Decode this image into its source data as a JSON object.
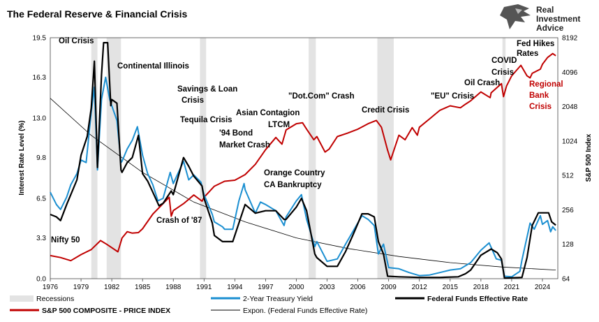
{
  "title": "The Federal Reserve & Financial Crisis",
  "logo": {
    "lines": [
      "Real",
      "Investment",
      "Advice"
    ]
  },
  "chart_data": {
    "type": "line",
    "left_axis": {
      "label": "Interest Rate Level (%)",
      "min": 0,
      "max": 19.5,
      "ticks": [
        "0.0",
        "3.3",
        "6.5",
        "9.8",
        "13.0",
        "16.3",
        "19.5"
      ]
    },
    "right_axis": {
      "label": "S&P 500 Index",
      "scale": "log2",
      "min": 64,
      "max": 8192,
      "ticks": [
        "64",
        "128",
        "256",
        "512",
        "1024",
        "2048",
        "4096",
        "8192"
      ]
    },
    "x_axis": {
      "min": 1976,
      "max": 2025.5,
      "ticks": [
        "1976",
        "1979",
        "1982",
        "1985",
        "1988",
        "1991",
        "1994",
        "1997",
        "2000",
        "2003",
        "2006",
        "2009",
        "2012",
        "2015",
        "2018",
        "2021",
        "2024"
      ]
    },
    "recessions": [
      [
        1980.0,
        1980.6
      ],
      [
        1981.5,
        1982.9
      ],
      [
        1990.6,
        1991.2
      ],
      [
        2001.2,
        2001.9
      ],
      [
        2007.9,
        2009.5
      ],
      [
        2020.1,
        2020.4
      ]
    ],
    "series": [
      {
        "name": "S&P 500 COMPOSITE - PRICE INDEX",
        "axis": "right",
        "color": "#c00000",
        "points": [
          [
            1976,
            102
          ],
          [
            1977,
            98
          ],
          [
            1978,
            92
          ],
          [
            1979,
            104
          ],
          [
            1980,
            115
          ],
          [
            1980.9,
            138
          ],
          [
            1981.5,
            128
          ],
          [
            1982.6,
            110
          ],
          [
            1983,
            145
          ],
          [
            1983.5,
            165
          ],
          [
            1984,
            160
          ],
          [
            1984.6,
            162
          ],
          [
            1985,
            175
          ],
          [
            1986,
            235
          ],
          [
            1987.6,
            330
          ],
          [
            1987.8,
            225
          ],
          [
            1988,
            252
          ],
          [
            1989,
            290
          ],
          [
            1990,
            345
          ],
          [
            1990.8,
            305
          ],
          [
            1991,
            330
          ],
          [
            1992,
            412
          ],
          [
            1993,
            455
          ],
          [
            1994,
            465
          ],
          [
            1995,
            520
          ],
          [
            1996,
            640
          ],
          [
            1997,
            860
          ],
          [
            1998,
            1100
          ],
          [
            1998.6,
            960
          ],
          [
            1999,
            1280
          ],
          [
            2000,
            1450
          ],
          [
            2000.6,
            1480
          ],
          [
            2001,
            1300
          ],
          [
            2001.7,
            1050
          ],
          [
            2002,
            1120
          ],
          [
            2002.8,
            820
          ],
          [
            2003.2,
            870
          ],
          [
            2004,
            1120
          ],
          [
            2005,
            1200
          ],
          [
            2006,
            1300
          ],
          [
            2007,
            1450
          ],
          [
            2007.8,
            1550
          ],
          [
            2008.3,
            1350
          ],
          [
            2008.9,
            850
          ],
          [
            2009.2,
            700
          ],
          [
            2010,
            1150
          ],
          [
            2010.6,
            1050
          ],
          [
            2011.3,
            1340
          ],
          [
            2011.8,
            1150
          ],
          [
            2012,
            1350
          ],
          [
            2013,
            1600
          ],
          [
            2014,
            1900
          ],
          [
            2015,
            2080
          ],
          [
            2016,
            2000
          ],
          [
            2016.5,
            2150
          ],
          [
            2017,
            2300
          ],
          [
            2018,
            2750
          ],
          [
            2018.9,
            2450
          ],
          [
            2019,
            2700
          ],
          [
            2020,
            3250
          ],
          [
            2020.2,
            2500
          ],
          [
            2020.5,
            3100
          ],
          [
            2021,
            3800
          ],
          [
            2021.9,
            4700
          ],
          [
            2022.5,
            3800
          ],
          [
            2022.8,
            3650
          ],
          [
            2023,
            4000
          ],
          [
            2023.8,
            4350
          ],
          [
            2024,
            4800
          ],
          [
            2024.5,
            5500
          ],
          [
            2025,
            5950
          ],
          [
            2025.3,
            5700
          ]
        ]
      },
      {
        "name": "2-Year Treasury Yield",
        "axis": "left",
        "color": "#1b8fd1",
        "points": [
          [
            1976,
            7.0
          ],
          [
            1976.6,
            6.0
          ],
          [
            1977,
            5.6
          ],
          [
            1977.6,
            6.6
          ],
          [
            1978,
            7.6
          ],
          [
            1978.6,
            8.5
          ],
          [
            1979,
            9.6
          ],
          [
            1979.5,
            9.4
          ],
          [
            1980,
            13.5
          ],
          [
            1980.3,
            15.5
          ],
          [
            1980.6,
            8.8
          ],
          [
            1981,
            14.5
          ],
          [
            1981.4,
            16.3
          ],
          [
            1981.8,
            14.5
          ],
          [
            1982,
            14.0
          ],
          [
            1982.5,
            12.8
          ],
          [
            1982.9,
            9.4
          ],
          [
            1983,
            9.5
          ],
          [
            1983.5,
            10.5
          ],
          [
            1984,
            11.2
          ],
          [
            1984.5,
            12.3
          ],
          [
            1985,
            10.0
          ],
          [
            1985.5,
            8.5
          ],
          [
            1986,
            7.6
          ],
          [
            1986.5,
            6.3
          ],
          [
            1987,
            6.5
          ],
          [
            1987.7,
            8.6
          ],
          [
            1988,
            7.7
          ],
          [
            1989,
            9.5
          ],
          [
            1989.5,
            8.0
          ],
          [
            1990,
            8.4
          ],
          [
            1990.7,
            7.8
          ],
          [
            1991,
            6.8
          ],
          [
            1991.8,
            5.2
          ],
          [
            1992,
            4.6
          ],
          [
            1992.8,
            4.2
          ],
          [
            1993,
            4.0
          ],
          [
            1993.8,
            4.0
          ],
          [
            1994.4,
            6.3
          ],
          [
            1994.9,
            7.7
          ],
          [
            1995,
            7.2
          ],
          [
            1996,
            5.3
          ],
          [
            1996.5,
            6.2
          ],
          [
            1997,
            6.0
          ],
          [
            1998,
            5.5
          ],
          [
            1998.8,
            4.3
          ],
          [
            1999,
            5.0
          ],
          [
            2000,
            6.3
          ],
          [
            2000.5,
            6.8
          ],
          [
            2001,
            4.8
          ],
          [
            2001.8,
            2.6
          ],
          [
            2002,
            3.0
          ],
          [
            2003,
            1.4
          ],
          [
            2004,
            1.6
          ],
          [
            2004.8,
            2.8
          ],
          [
            2005.5,
            3.8
          ],
          [
            2006.4,
            5.1
          ],
          [
            2007,
            4.8
          ],
          [
            2007.6,
            4.3
          ],
          [
            2008,
            2.0
          ],
          [
            2008.5,
            2.8
          ],
          [
            2009,
            0.9
          ],
          [
            2010,
            0.8
          ],
          [
            2011,
            0.5
          ],
          [
            2012,
            0.25
          ],
          [
            2013,
            0.3
          ],
          [
            2014,
            0.5
          ],
          [
            2015,
            0.7
          ],
          [
            2016,
            0.8
          ],
          [
            2017,
            1.3
          ],
          [
            2018,
            2.3
          ],
          [
            2018.8,
            2.9
          ],
          [
            2019.5,
            1.6
          ],
          [
            2020,
            1.5
          ],
          [
            2020.3,
            0.2
          ],
          [
            2021,
            0.15
          ],
          [
            2021.8,
            0.6
          ],
          [
            2022,
            1.5
          ],
          [
            2022.8,
            4.5
          ],
          [
            2023.2,
            4.0
          ],
          [
            2023.8,
            5.1
          ],
          [
            2024,
            4.4
          ],
          [
            2024.5,
            4.7
          ],
          [
            2024.8,
            3.8
          ],
          [
            2025,
            4.2
          ],
          [
            2025.3,
            3.9
          ]
        ]
      },
      {
        "name": "Federal Funds Effective Rate",
        "axis": "left",
        "color": "#000000",
        "points": [
          [
            1976,
            5.2
          ],
          [
            1976.6,
            5.0
          ],
          [
            1977,
            4.7
          ],
          [
            1977.6,
            6.0
          ],
          [
            1978,
            6.8
          ],
          [
            1978.6,
            8.0
          ],
          [
            1979,
            10.0
          ],
          [
            1979.6,
            11.5
          ],
          [
            1980,
            13.8
          ],
          [
            1980.3,
            17.6
          ],
          [
            1980.6,
            9.0
          ],
          [
            1981,
            16.5
          ],
          [
            1981.2,
            19.1
          ],
          [
            1981.6,
            19.1
          ],
          [
            1981.9,
            14.0
          ],
          [
            1982,
            14.5
          ],
          [
            1982.5,
            14.2
          ],
          [
            1982.9,
            8.8
          ],
          [
            1983,
            8.6
          ],
          [
            1983.5,
            9.4
          ],
          [
            1984,
            9.8
          ],
          [
            1984.6,
            11.6
          ],
          [
            1985,
            8.5
          ],
          [
            1985.5,
            7.9
          ],
          [
            1986,
            7.0
          ],
          [
            1986.6,
            5.9
          ],
          [
            1987,
            6.1
          ],
          [
            1987.8,
            7.1
          ],
          [
            1988,
            6.8
          ],
          [
            1989,
            9.8
          ],
          [
            1989.5,
            9.1
          ],
          [
            1990,
            8.3
          ],
          [
            1990.8,
            7.5
          ],
          [
            1991,
            6.5
          ],
          [
            1991.8,
            4.5
          ],
          [
            1992,
            3.5
          ],
          [
            1992.8,
            3.0
          ],
          [
            1993,
            3.0
          ],
          [
            1993.8,
            3.0
          ],
          [
            1994.4,
            4.5
          ],
          [
            1995,
            6.0
          ],
          [
            1996,
            5.3
          ],
          [
            1997,
            5.5
          ],
          [
            1998,
            5.5
          ],
          [
            1998.8,
            4.8
          ],
          [
            1999,
            4.8
          ],
          [
            2000,
            5.8
          ],
          [
            2000.5,
            6.5
          ],
          [
            2001,
            5.5
          ],
          [
            2001.8,
            2.0
          ],
          [
            2002,
            1.7
          ],
          [
            2003,
            1.0
          ],
          [
            2004,
            1.0
          ],
          [
            2004.8,
            2.2
          ],
          [
            2005.5,
            3.5
          ],
          [
            2006.4,
            5.25
          ],
          [
            2007,
            5.25
          ],
          [
            2007.6,
            5.0
          ],
          [
            2008,
            3.0
          ],
          [
            2008.5,
            2.0
          ],
          [
            2008.9,
            0.2
          ],
          [
            2010,
            0.15
          ],
          [
            2012,
            0.1
          ],
          [
            2014,
            0.1
          ],
          [
            2015.8,
            0.15
          ],
          [
            2016.5,
            0.4
          ],
          [
            2017,
            0.7
          ],
          [
            2018,
            1.9
          ],
          [
            2019,
            2.4
          ],
          [
            2019.6,
            2.1
          ],
          [
            2020,
            1.6
          ],
          [
            2020.3,
            0.05
          ],
          [
            2022,
            0.1
          ],
          [
            2022.5,
            1.7
          ],
          [
            2023,
            4.3
          ],
          [
            2023.6,
            5.33
          ],
          [
            2024.6,
            5.33
          ],
          [
            2024.9,
            4.6
          ],
          [
            2025.3,
            4.33
          ]
        ]
      },
      {
        "name": "Expon. (Federal Funds Effective Rate)",
        "axis": "left",
        "color": "#000000",
        "points": [
          [
            1976,
            14.6
          ],
          [
            1980,
            11.6
          ],
          [
            1985,
            8.6
          ],
          [
            1990,
            6.2
          ],
          [
            1995,
            4.6
          ],
          [
            2000,
            3.3
          ],
          [
            2005,
            2.45
          ],
          [
            2010,
            1.8
          ],
          [
            2015,
            1.3
          ],
          [
            2020,
            0.95
          ],
          [
            2025.3,
            0.7
          ]
        ]
      }
    ],
    "annotations": [
      {
        "text": "Oil Crisis",
        "color": "black"
      },
      {
        "text": "Continental Illinois",
        "color": "black"
      },
      {
        "text": "Savings & Loan",
        "color": "black"
      },
      {
        "text": "Crisis",
        "color": "black"
      },
      {
        "text": "Tequila Crisis",
        "color": "black"
      },
      {
        "text": "'94 Bond",
        "color": "black"
      },
      {
        "text": "Market Crash",
        "color": "black"
      },
      {
        "text": "Asian Contagion",
        "color": "black"
      },
      {
        "text": "LTCM",
        "color": "black"
      },
      {
        "text": "\"Dot.Com\" Crash",
        "color": "black"
      },
      {
        "text": "Credit Crisis",
        "color": "black"
      },
      {
        "text": "\"EU\" Crisis",
        "color": "black"
      },
      {
        "text": "Oil Crash",
        "color": "black"
      },
      {
        "text": "COVID",
        "color": "black"
      },
      {
        "text": "Crisis",
        "color": "black"
      },
      {
        "text": "Fed Hikes",
        "color": "black"
      },
      {
        "text": "Rates",
        "color": "black"
      },
      {
        "text": "Orange Country",
        "color": "black"
      },
      {
        "text": "CA Bankruptcy",
        "color": "black"
      },
      {
        "text": "Crash of '87",
        "color": "black"
      },
      {
        "text": "Nifty 50",
        "color": "black"
      },
      {
        "text": "Regional",
        "color": "red"
      },
      {
        "text": "Bank",
        "color": "red"
      },
      {
        "text": "Crisis",
        "color": "red"
      }
    ],
    "legend": {
      "recessions": "Recessions",
      "treasury": "2-Year Treasury Yield",
      "fedfunds": "Federal Funds Effective Rate",
      "sp500": "S&P 500 COMPOSITE - PRICE INDEX",
      "expon": "Expon. (Federal Funds Effective Rate)"
    }
  }
}
